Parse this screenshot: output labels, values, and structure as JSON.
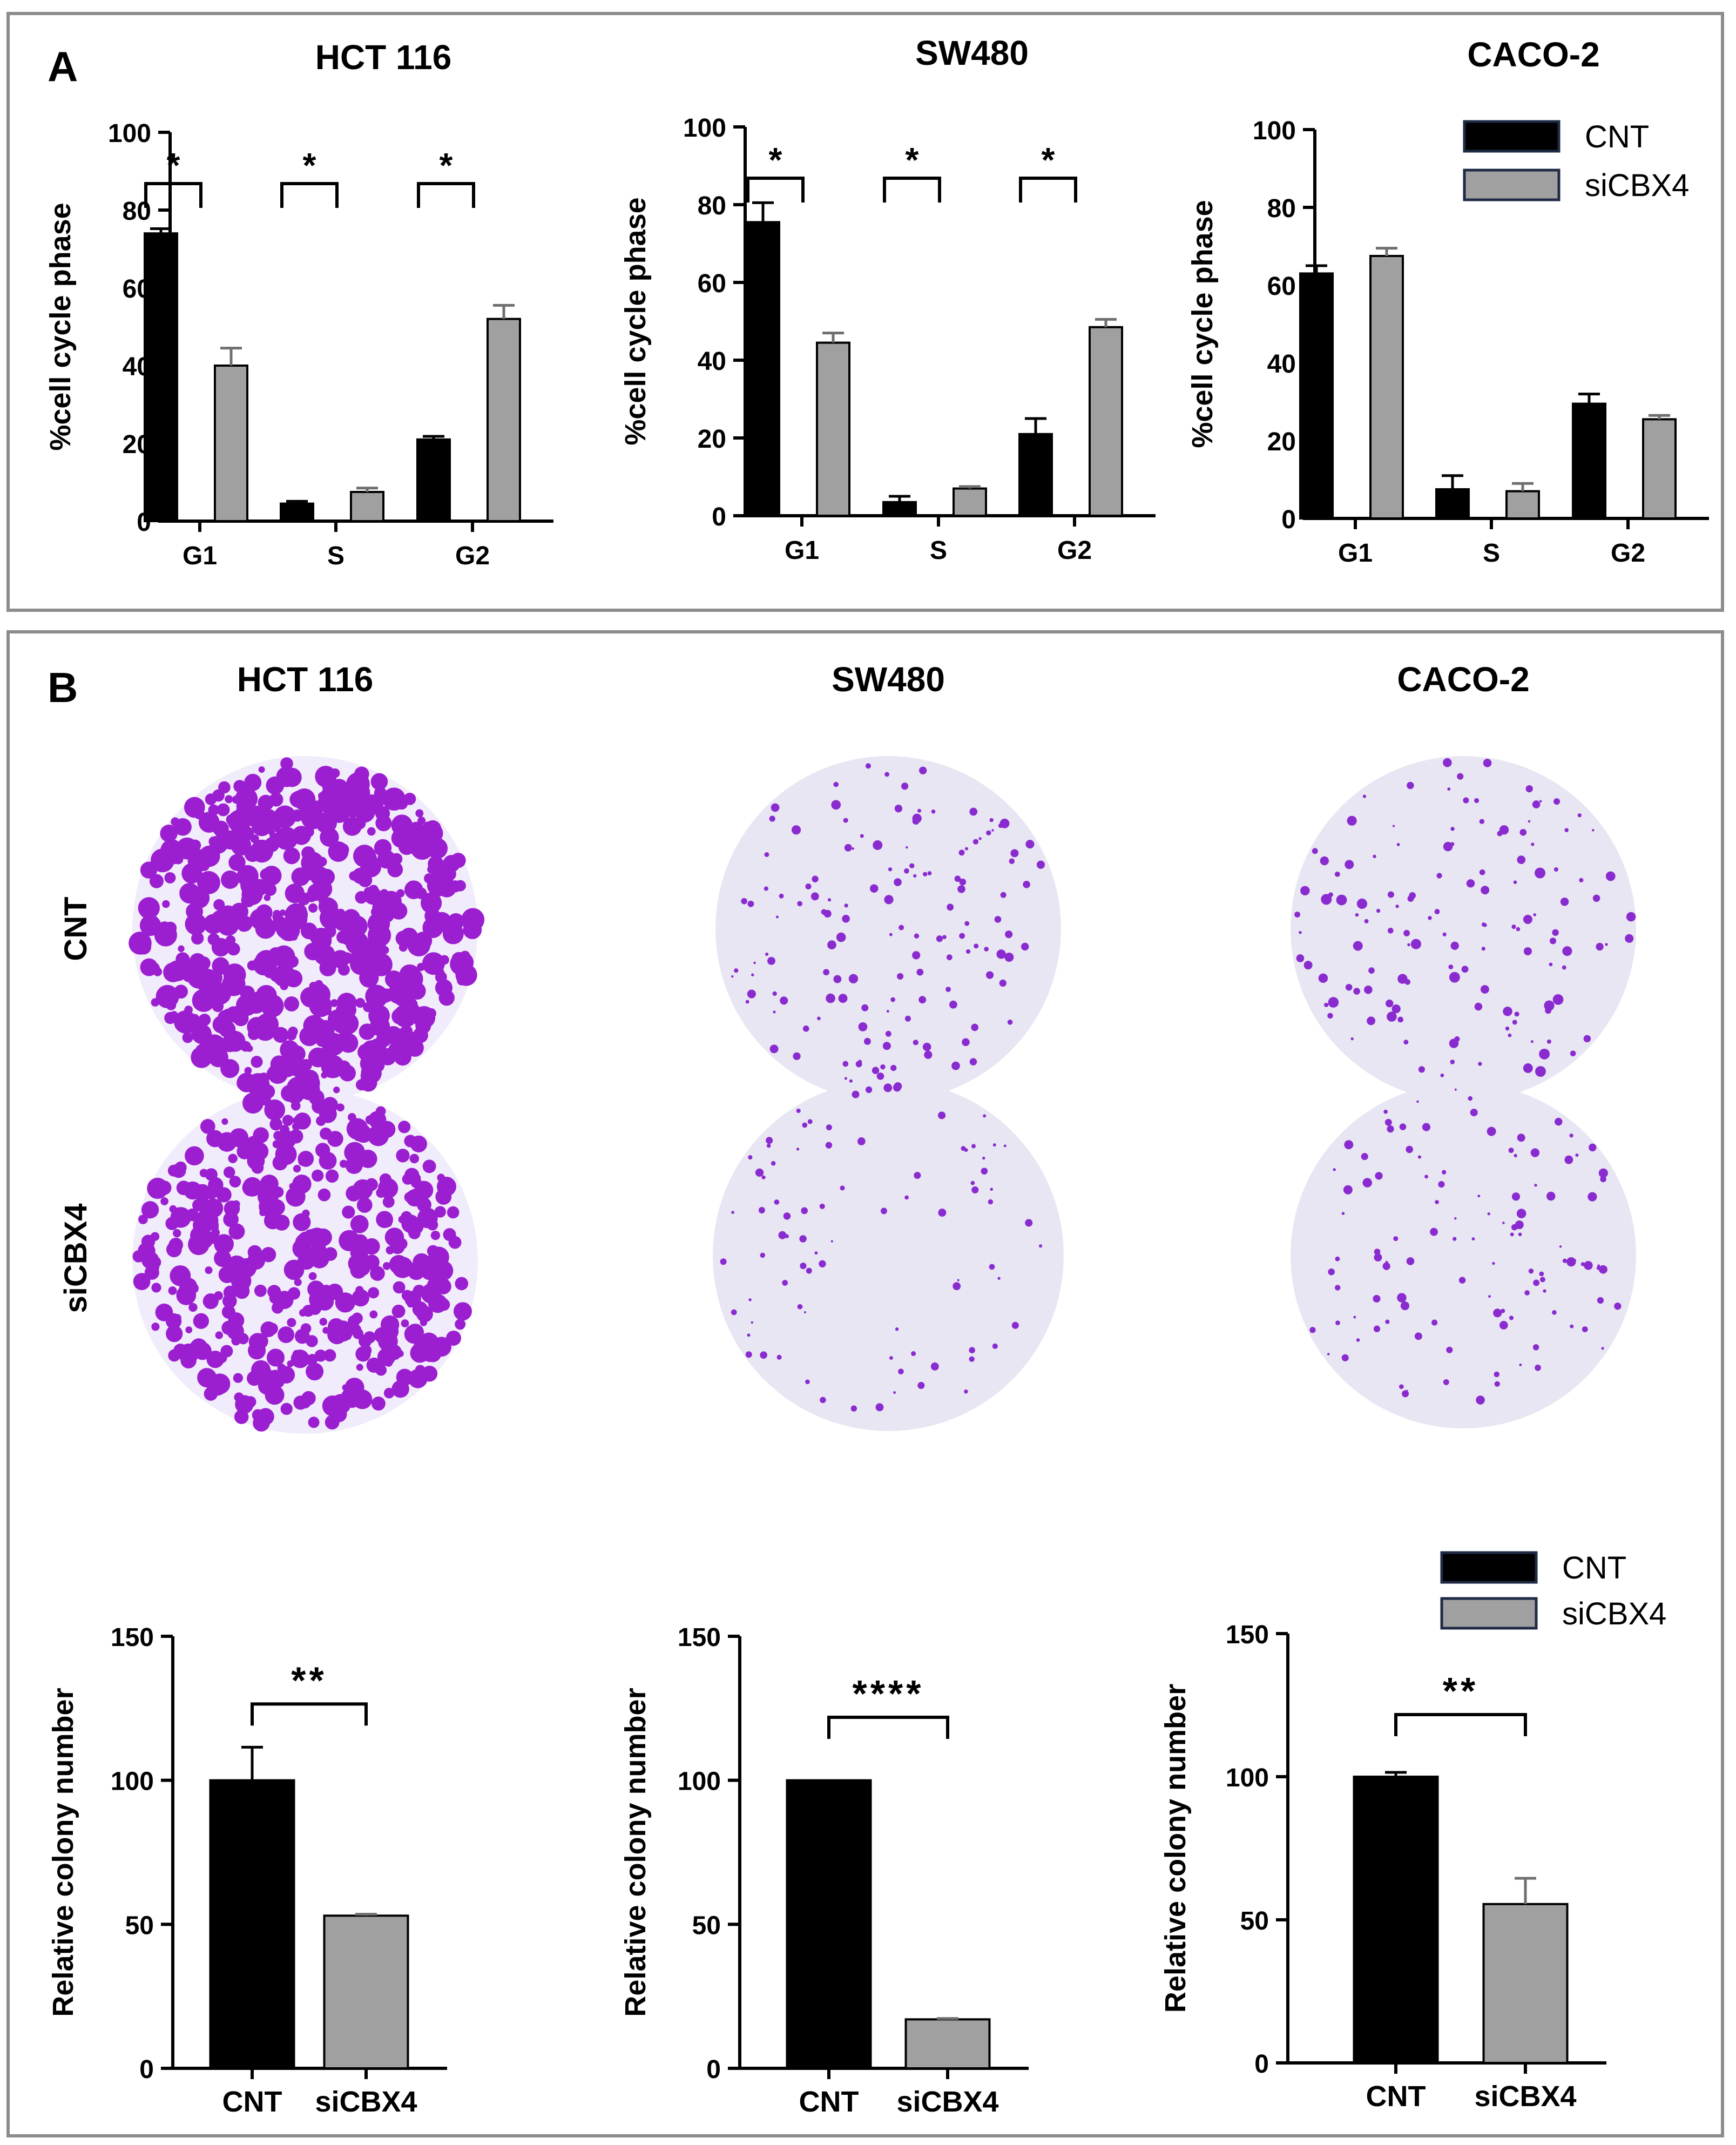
{
  "panels": {
    "a": {
      "letter": "A"
    },
    "b": {
      "letter": "B"
    }
  },
  "colors": {
    "cnt": "#000000",
    "sicbx4": "#a0a0a0",
    "frame": "#8c8c8c",
    "dish_dense": "#9b1fd0",
    "dish_light": "#e8e6f2"
  },
  "legend_a": {
    "cnt": "CNT",
    "sicbx4": "siCBX4"
  },
  "legend_b": {
    "cnt": "CNT",
    "sicbx4": "siCBX4"
  },
  "row_labels": {
    "cnt": "CNT",
    "sicbx4": "siCBX4"
  },
  "dish_titles": [
    "HCT 116",
    "SW480",
    "CACO-2"
  ],
  "chart_data": [
    {
      "type": "bar",
      "title": "HCT 116",
      "ylabel": "%cell cycle phase",
      "xlabel": "",
      "categories": [
        "G1",
        "S",
        "G2"
      ],
      "ylim": [
        0,
        100
      ],
      "yticks": [
        "0",
        "20",
        "40",
        "60",
        "80",
        "100"
      ],
      "series": [
        {
          "name": "CNT",
          "values": [
            74,
            4.5,
            21
          ],
          "errors": [
            1.2,
            0.6,
            0.8
          ]
        },
        {
          "name": "siCBX4",
          "values": [
            40,
            7.5,
            52
          ],
          "errors": [
            4.5,
            1.0,
            3.5
          ]
        }
      ],
      "significance": [
        "*",
        "*",
        "*"
      ]
    },
    {
      "type": "bar",
      "title": "SW480",
      "ylabel": "%cell cycle phase",
      "xlabel": "",
      "categories": [
        "G1",
        "S",
        "G2"
      ],
      "ylim": [
        0,
        100
      ],
      "yticks": [
        "0",
        "20",
        "40",
        "60",
        "80",
        "100"
      ],
      "series": [
        {
          "name": "CNT",
          "values": [
            75.5,
            3.5,
            21
          ],
          "errors": [
            5,
            1.5,
            4
          ]
        },
        {
          "name": "siCBX4",
          "values": [
            44.5,
            7,
            48.5
          ],
          "errors": [
            2.5,
            0.5,
            2
          ]
        }
      ],
      "significance": [
        "*",
        "*",
        "*"
      ]
    },
    {
      "type": "bar",
      "title": "CACO-2",
      "ylabel": "%cell cycle phase",
      "xlabel": "",
      "categories": [
        "G1",
        "S",
        "G2"
      ],
      "ylim": [
        0,
        100
      ],
      "yticks": [
        "0",
        "20",
        "40",
        "60",
        "80",
        "100"
      ],
      "series": [
        {
          "name": "CNT",
          "values": [
            63,
            7.5,
            29.5
          ],
          "errors": [
            2,
            3.5,
            2.5
          ]
        },
        {
          "name": "siCBX4",
          "values": [
            67.5,
            7,
            25.5
          ],
          "errors": [
            2,
            2,
            1
          ]
        }
      ],
      "significance": [
        "",
        "",
        ""
      ]
    },
    {
      "type": "bar",
      "title": "",
      "ylabel": "Relative colony number",
      "xlabel": "",
      "categories": [
        "CNT",
        "siCBX4"
      ],
      "ylim": [
        0,
        150
      ],
      "yticks": [
        "0",
        "50",
        "100",
        "150"
      ],
      "values": [
        100,
        53
      ],
      "errors": [
        11.5,
        0.5
      ],
      "significance": "**"
    },
    {
      "type": "bar",
      "title": "",
      "ylabel": "Relative colony number",
      "xlabel": "",
      "categories": [
        "CNT",
        "siCBX4"
      ],
      "ylim": [
        0,
        150
      ],
      "yticks": [
        "0",
        "50",
        "100",
        "150"
      ],
      "values": [
        100,
        17
      ],
      "errors": [
        0,
        0.3
      ],
      "significance": "****"
    },
    {
      "type": "bar",
      "title": "",
      "ylabel": "Relative colony number",
      "xlabel": "",
      "categories": [
        "CNT",
        "siCBX4"
      ],
      "ylim": [
        0,
        150
      ],
      "yticks": [
        "0",
        "50",
        "100",
        "150"
      ],
      "values": [
        100,
        55.5
      ],
      "errors": [
        1.5,
        9
      ],
      "significance": "**"
    }
  ]
}
